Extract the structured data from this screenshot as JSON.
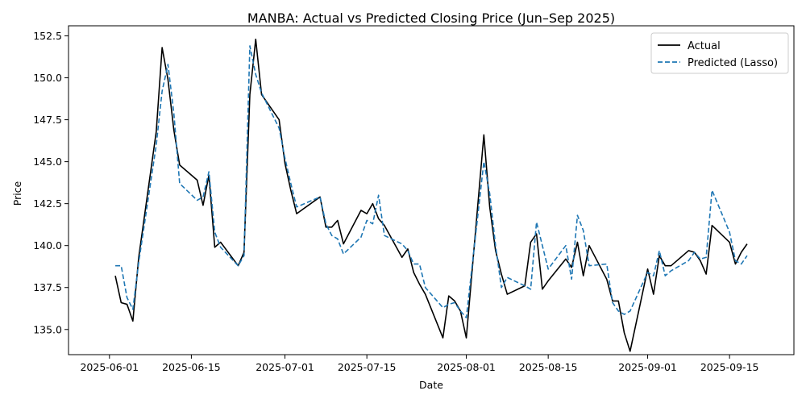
{
  "chart_data": {
    "type": "line",
    "title": "MANBA: Actual vs Predicted Closing Price (Jun–Sep 2025)",
    "xlabel": "Date",
    "ylabel": "Price",
    "xlim": [
      "2025-05-25",
      "2025-09-26"
    ],
    "ylim": [
      133.5,
      153.1
    ],
    "x_ticks": [
      "2025-06-01",
      "2025-06-15",
      "2025-07-01",
      "2025-07-15",
      "2025-08-01",
      "2025-08-15",
      "2025-09-01",
      "2025-09-15"
    ],
    "y_ticks": [
      135.0,
      137.5,
      140.0,
      142.5,
      145.0,
      147.5,
      150.0,
      152.5
    ],
    "y_tick_labels": [
      "135.0",
      "137.5",
      "140.0",
      "142.5",
      "145.0",
      "147.5",
      "150.0",
      "152.5"
    ],
    "grid": false,
    "legend": "top-right",
    "x": [
      "2025-06-02",
      "2025-06-03",
      "2025-06-04",
      "2025-06-05",
      "2025-06-06",
      "2025-06-09",
      "2025-06-10",
      "2025-06-11",
      "2025-06-12",
      "2025-06-13",
      "2025-06-16",
      "2025-06-17",
      "2025-06-18",
      "2025-06-19",
      "2025-06-20",
      "2025-06-23",
      "2025-06-24",
      "2025-06-25",
      "2025-06-26",
      "2025-06-27",
      "2025-06-30",
      "2025-07-01",
      "2025-07-02",
      "2025-07-03",
      "2025-07-07",
      "2025-07-08",
      "2025-07-09",
      "2025-07-10",
      "2025-07-11",
      "2025-07-14",
      "2025-07-15",
      "2025-07-16",
      "2025-07-17",
      "2025-07-18",
      "2025-07-21",
      "2025-07-22",
      "2025-07-23",
      "2025-07-24",
      "2025-07-25",
      "2025-07-28",
      "2025-07-29",
      "2025-07-30",
      "2025-07-31",
      "2025-08-01",
      "2025-08-04",
      "2025-08-05",
      "2025-08-06",
      "2025-08-07",
      "2025-08-08",
      "2025-08-11",
      "2025-08-12",
      "2025-08-13",
      "2025-08-14",
      "2025-08-15",
      "2025-08-18",
      "2025-08-19",
      "2025-08-20",
      "2025-08-21",
      "2025-08-22",
      "2025-08-25",
      "2025-08-26",
      "2025-08-27",
      "2025-08-28",
      "2025-08-29",
      "2025-09-01",
      "2025-09-02",
      "2025-09-03",
      "2025-09-04",
      "2025-09-05",
      "2025-09-08",
      "2025-09-09",
      "2025-09-10",
      "2025-09-11",
      "2025-09-12",
      "2025-09-15",
      "2025-09-16",
      "2025-09-17",
      "2025-09-18"
    ],
    "series": [
      {
        "name": "Actual",
        "color": "#000000",
        "style": "solid",
        "values": [
          138.2,
          136.6,
          136.5,
          135.5,
          139.3,
          146.8,
          151.8,
          149.9,
          146.9,
          144.8,
          143.9,
          142.4,
          144.2,
          139.9,
          140.2,
          138.8,
          139.6,
          149.0,
          152.3,
          149.0,
          147.5,
          144.9,
          143.3,
          141.9,
          142.9,
          141.1,
          141.1,
          141.5,
          140.1,
          142.1,
          141.9,
          142.5,
          141.6,
          141.2,
          139.3,
          139.8,
          138.4,
          137.7,
          137.1,
          134.5,
          137.0,
          136.7,
          136.1,
          134.5,
          146.6,
          142.3,
          139.7,
          138.3,
          137.1,
          137.6,
          140.2,
          140.7,
          137.4,
          137.9,
          139.2,
          138.7,
          140.2,
          138.2,
          140.0,
          138.0,
          136.7,
          136.7,
          134.8,
          133.7,
          138.6,
          137.1,
          139.4,
          138.8,
          138.8,
          139.7,
          139.6,
          139.1,
          138.3,
          141.2,
          140.2,
          138.9,
          139.6,
          140.1
        ]
      },
      {
        "name": "Predicted (Lasso)",
        "color": "#1f77b4",
        "style": "dashed",
        "values": [
          138.8,
          138.8,
          136.9,
          136.2,
          139.0,
          146.0,
          149.2,
          150.8,
          147.9,
          143.7,
          142.7,
          142.9,
          144.4,
          140.8,
          139.9,
          138.8,
          139.4,
          151.9,
          150.2,
          149.1,
          147.0,
          145.2,
          143.7,
          142.3,
          142.9,
          141.3,
          140.6,
          140.4,
          139.5,
          140.5,
          141.5,
          141.3,
          143.0,
          140.6,
          140.1,
          139.7,
          138.9,
          138.9,
          137.5,
          136.3,
          136.5,
          136.6,
          136.1,
          135.7,
          145.0,
          143.1,
          140.0,
          137.5,
          138.1,
          137.6,
          137.4,
          141.4,
          140.0,
          138.6,
          140.0,
          138.0,
          141.8,
          140.9,
          138.8,
          138.9,
          136.6,
          136.1,
          135.9,
          136.1,
          138.4,
          138.2,
          139.7,
          138.2,
          138.5,
          139.1,
          139.6,
          139.2,
          139.3,
          143.3,
          140.8,
          139.1,
          138.9,
          139.4
        ]
      }
    ]
  }
}
